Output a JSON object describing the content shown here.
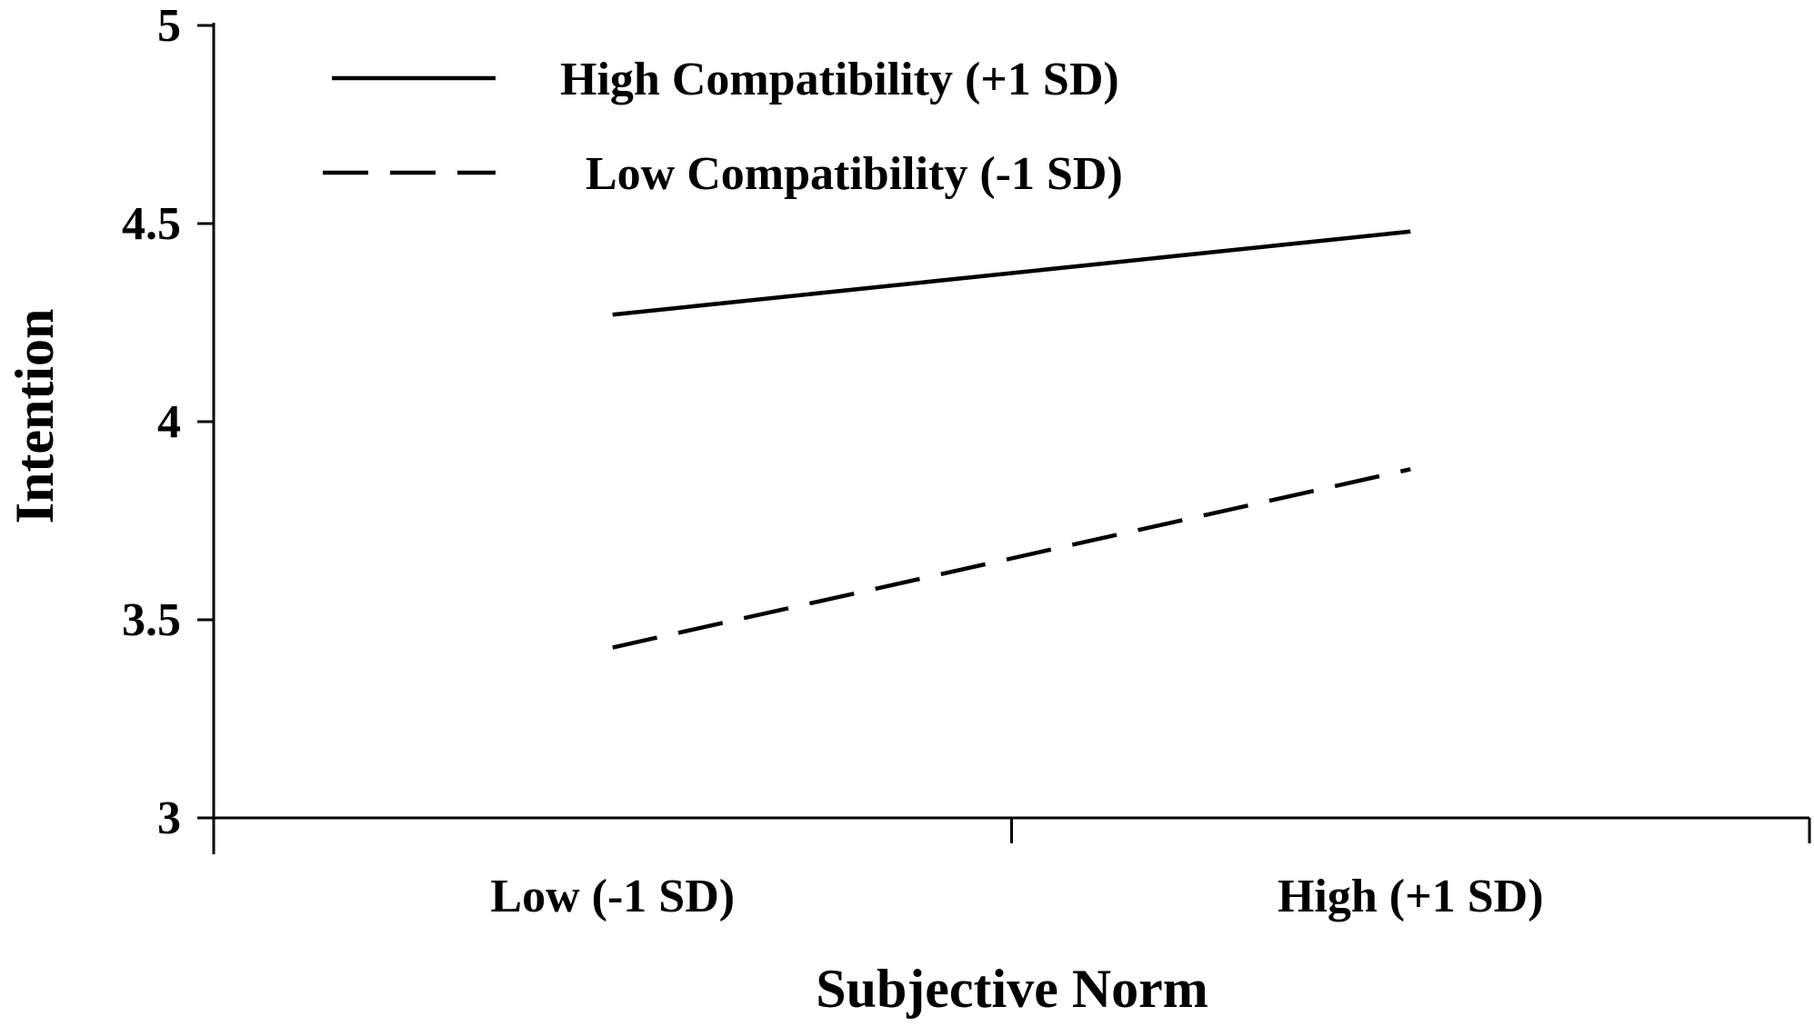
{
  "chart_data": {
    "type": "line",
    "title": "",
    "xlabel": "Subjective Norm",
    "ylabel": "Intention",
    "categories": [
      "Low (-1 SD)",
      "High (+1 SD)"
    ],
    "ylim": [
      3,
      5
    ],
    "yticks": [
      "3",
      "3.5",
      "4",
      "4.5",
      "5"
    ],
    "grid": false,
    "legend_position": "top-left",
    "series": [
      {
        "name": "High Compatibility (+1 SD)",
        "values": [
          4.27,
          4.48
        ],
        "style": "solid"
      },
      {
        "name": "Low Compatibility (-1 SD)",
        "values": [
          3.43,
          3.88
        ],
        "style": "dashed"
      }
    ]
  }
}
